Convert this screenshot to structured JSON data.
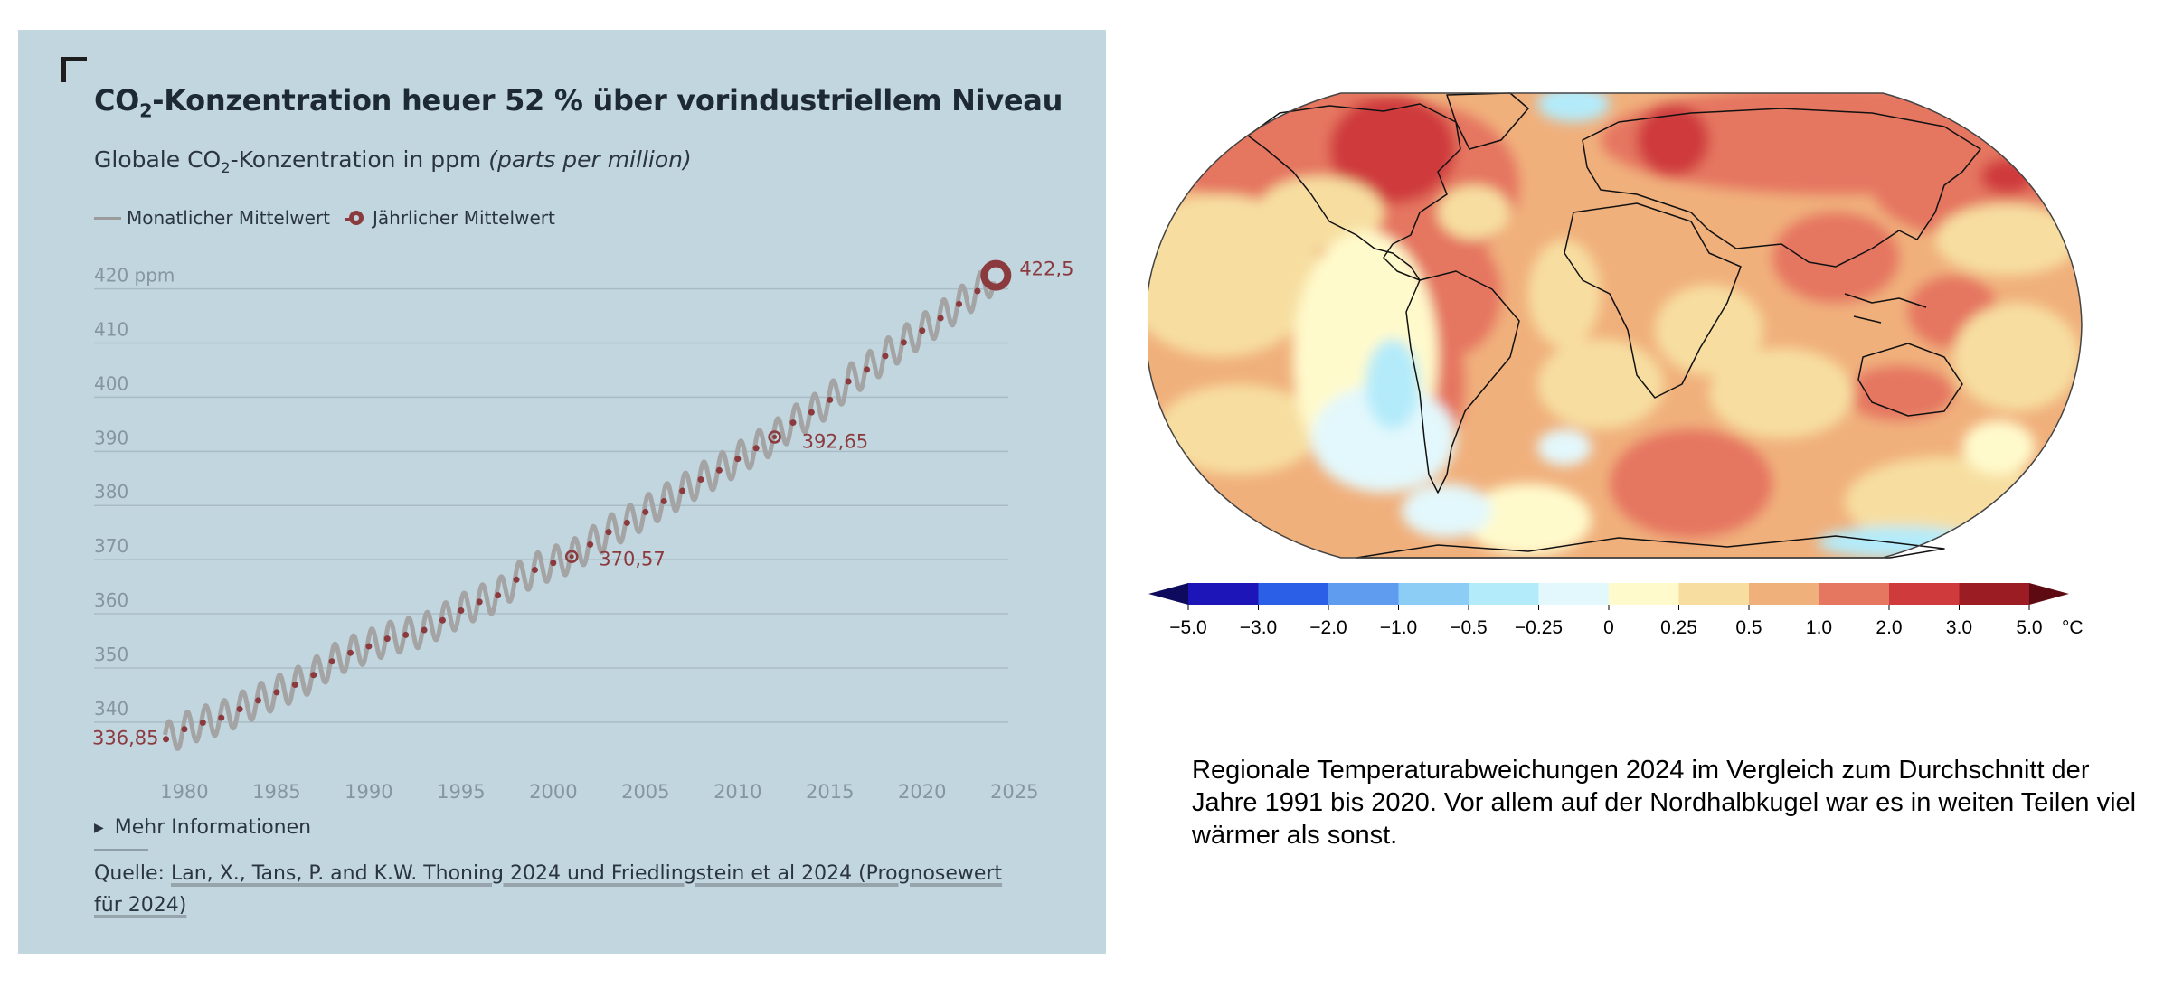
{
  "left": {
    "title_prefix": "CO",
    "title_sub": "2",
    "title_rest": "-Konzentration heuer 52 % über vorindustriellem Niveau",
    "subtitle_prefix": "Globale CO",
    "subtitle_sub": "2",
    "subtitle_rest": "-Konzentration in ppm ",
    "subtitle_italic": "(parts per million)",
    "legend": {
      "monthly": "Monatlicher Mittelwert",
      "yearly": "Jährlicher Mittelwert"
    },
    "more_info": "Mehr Informationen",
    "source_label": "Quelle: ",
    "source_link": "Lan, X., Tans, P. and K.W. Thoning 2024 und Friedlingstein et al 2024 (Prognosewert für 2024)"
  },
  "chart_data": {
    "type": "line",
    "title": "CO2-Konzentration heuer 52 % über vorindustriellem Niveau",
    "subtitle": "Globale CO2-Konzentration in ppm (parts per million)",
    "x_ticks": [
      "1980",
      "1985",
      "1990",
      "1995",
      "2000",
      "2005",
      "2010",
      "2015",
      "2020",
      "2025"
    ],
    "y_ticks": [
      "340",
      "350",
      "360",
      "370",
      "380",
      "390",
      "400",
      "410",
      "420 ppm"
    ],
    "y_tick_values": [
      340,
      350,
      360,
      370,
      380,
      390,
      400,
      410,
      420
    ],
    "xlim": [
      1975.1,
      2025.7
    ],
    "ylim": [
      331.3,
      421.6
    ],
    "grid": true,
    "legend_position": "top-left",
    "series": [
      {
        "name": "Jährlicher Mittelwert",
        "x": [
          1979,
          1980,
          1981,
          1982,
          1983,
          1984,
          1985,
          1986,
          1987,
          1988,
          1989,
          1990,
          1991,
          1992,
          1993,
          1994,
          1995,
          1996,
          1997,
          1998,
          1999,
          2000,
          2001,
          2002,
          2003,
          2004,
          2005,
          2006,
          2007,
          2008,
          2009,
          2010,
          2011,
          2012,
          2013,
          2014,
          2015,
          2016,
          2017,
          2018,
          2019,
          2020,
          2021,
          2022,
          2023,
          2024
        ],
        "values": [
          336.85,
          338.7,
          339.9,
          340.8,
          342.4,
          344.0,
          345.5,
          346.9,
          348.7,
          351.2,
          352.8,
          354.0,
          355.4,
          356.1,
          357.0,
          358.8,
          360.6,
          362.2,
          363.4,
          366.3,
          368.1,
          369.4,
          370.57,
          372.8,
          375.1,
          376.8,
          378.8,
          380.8,
          382.7,
          384.8,
          386.5,
          388.6,
          390.6,
          392.65,
          395.3,
          397.2,
          399.5,
          402.9,
          405.1,
          407.6,
          410.1,
          412.3,
          414.6,
          417.2,
          419.6,
          422.5
        ],
        "labels": [
          {
            "x": 1979,
            "value": "336,85"
          },
          {
            "x": 2001,
            "value": "370,57"
          },
          {
            "x": 2012,
            "value": "392,65"
          },
          {
            "x": 2024,
            "value": "422,5"
          }
        ]
      },
      {
        "name": "Monatlicher Mittelwert",
        "note": "seasonal cycle around the annual mean, amplitude approx. 3 ppm"
      }
    ],
    "colors": {
      "monthly": "#a4a4a4",
      "yearly": "#8b3a3e",
      "grid": "#a9bcc6",
      "tick": "#8496a2"
    }
  },
  "map": {
    "caption": "Regionale Temperaturabweichungen 2024 im Vergleich zum Durchschnitt der Jahre 1991 bis 2020. Vor allem auf der Nordhalbkugel war es in weiten Teilen viel wärmer als sonst.",
    "colorbar": {
      "ticks": [
        "−5.0",
        "−3.0",
        "−2.0",
        "−1.0",
        "−0.5",
        "−0.25",
        "0",
        "0.25",
        "0.5",
        "1.0",
        "2.0",
        "3.0",
        "5.0"
      ],
      "unit": "°C",
      "colors": [
        "#1d15b8",
        "#2c5fe8",
        "#5f9cf0",
        "#8ccdf6",
        "#b4ebfa",
        "#e3f8fc",
        "#fffacc",
        "#f7dea0",
        "#f0b07c",
        "#e57660",
        "#cf3a3c",
        "#9c1c24"
      ],
      "low_end": "#0e0a5e",
      "high_end": "#5e0a12"
    }
  }
}
